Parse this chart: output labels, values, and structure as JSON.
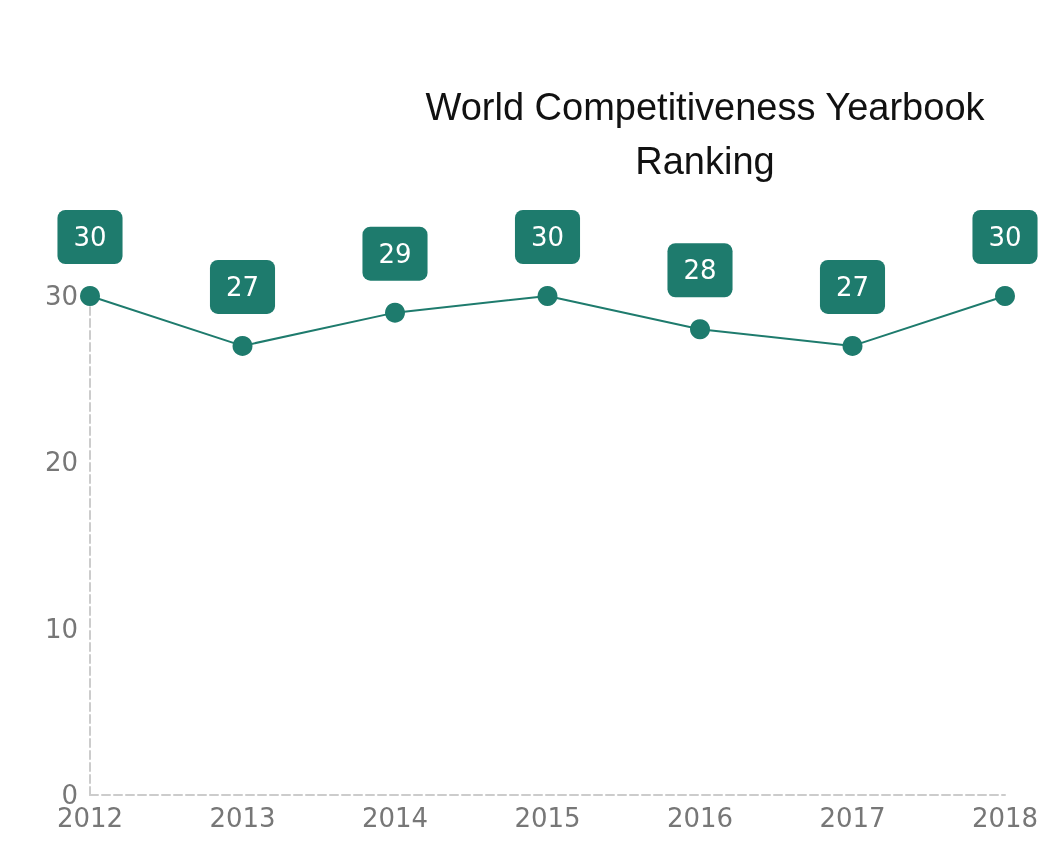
{
  "chart_data": {
    "type": "line",
    "title": "World Competitiveness Yearbook\nRanking",
    "categories": [
      "2012",
      "2013",
      "2014",
      "2015",
      "2016",
      "2017",
      "2018"
    ],
    "series": [
      {
        "color": "#1e7b6d",
        "values": [
          30,
          27,
          29,
          30,
          28,
          27,
          30
        ]
      }
    ],
    "ylim": [
      0,
      30
    ],
    "yticks": [
      0,
      10,
      20,
      30
    ],
    "grid": false,
    "marker": "circle",
    "line_style": "solid",
    "data_labels": true
  }
}
